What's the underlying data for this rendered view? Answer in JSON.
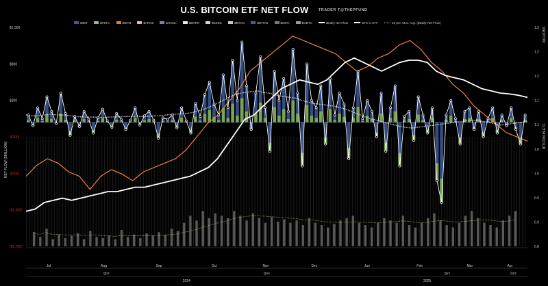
{
  "title": "U.S. BITCOIN ETF NET FLOW",
  "subtitle": "TRADER T@THEPFUND",
  "legend": [
    {
      "label": "$IBIT",
      "type": "bar",
      "color": "#3c5a9a"
    },
    {
      "label": "$FBTC",
      "type": "bar",
      "color": "#8fbf6a"
    },
    {
      "label": "$BITB",
      "type": "bar",
      "color": "#e07b39"
    },
    {
      "label": "$ARKB",
      "type": "bar",
      "color": "#f0b88a"
    },
    {
      "label": "$HODL",
      "type": "bar",
      "color": "#6f86c9"
    },
    {
      "label": "$BRRR",
      "type": "bar",
      "color": "#e8e8e8"
    },
    {
      "label": "$EZBC",
      "type": "bar",
      "color": "#f2c6b8"
    },
    {
      "label": "$BTCO",
      "type": "bar",
      "color": "#c9c9c9"
    },
    {
      "label": "$BTCW",
      "type": "bar",
      "color": "#4a5e8c"
    },
    {
      "label": "$DEFI",
      "type": "bar",
      "color": "#7a7a7a"
    },
    {
      "label": "$GBTC",
      "type": "bar",
      "color": "#9a9a9a"
    },
    {
      "label": "$Daily Net Flow",
      "type": "line-dot",
      "color": "#ffffff"
    },
    {
      "label": "BTC in ETF",
      "type": "line",
      "color": "#ffffff"
    },
    {
      "label": "20 per. Mov. Avg. ($Daily Net Flow)",
      "type": "dotted",
      "color": "#d9d9d9"
    }
  ],
  "axes": {
    "left_title": "NET FLOW ($MILLION)",
    "right_title_top": "MILLIONS",
    "right_title_mid": "BITCOIN IN ETF",
    "left_ticks": [
      {
        "label": "$1,300",
        "value": 1300,
        "neg": false
      },
      {
        "label": "$800",
        "value": 800,
        "neg": false
      },
      {
        "label": "$300",
        "value": 300,
        "neg": false
      },
      {
        "label": "($200)",
        "value": -200,
        "neg": true
      },
      {
        "label": "($700)",
        "value": -700,
        "neg": true
      },
      {
        "label": "($1,200)",
        "value": -1200,
        "neg": true
      },
      {
        "label": "($1,700)",
        "value": -1700,
        "neg": true
      }
    ],
    "right_ticks": [
      "1.3",
      "1.2",
      "1.2",
      "1.1",
      "1.1",
      "1.0",
      "1.0",
      "0.9",
      "0.9",
      "0.8"
    ],
    "months": [
      {
        "label": "Jul",
        "pos": 0.045
      },
      {
        "label": "Aug",
        "pos": 0.155
      },
      {
        "label": "Sep",
        "pos": 0.265
      },
      {
        "label": "Oct",
        "pos": 0.375
      },
      {
        "label": "Nov",
        "pos": 0.478
      },
      {
        "label": "Dec",
        "pos": 0.575
      },
      {
        "label": "Jan",
        "pos": 0.68
      },
      {
        "label": "Feb",
        "pos": 0.785
      },
      {
        "label": "Mar",
        "pos": 0.885
      },
      {
        "label": "Apr",
        "pos": 0.965
      }
    ],
    "quarters": [
      {
        "label": "Qtr3",
        "pos": 0.16
      },
      {
        "label": "Qtr4",
        "pos": 0.48
      },
      {
        "label": "Qtr1",
        "pos": 0.84
      },
      {
        "label": "Qtr2",
        "pos": 0.972
      }
    ],
    "years": [
      {
        "label": "2024",
        "pos": 0.32
      },
      {
        "label": "2025",
        "pos": 0.8
      }
    ]
  },
  "colors": {
    "ibit": "#3c5a9a",
    "fbtc": "#8fbf6a",
    "bitb": "#e07b39",
    "btc_in_etf": "#ffffff",
    "daily_flow": "#ffffff",
    "mov_avg": "#d9d9d9",
    "volume": "#5a5a5a",
    "volume_avg": "#c8c46a"
  },
  "chart_data": {
    "type": "line",
    "title": "U.S. BITCOIN ETF NET FLOW",
    "ylabel": "NET FLOW ($MILLION)",
    "y2label": "BITCOIN IN ETF (MILLIONS)",
    "ylim": [
      -1700,
      1300
    ],
    "y2lim": [
      0.8,
      1.3
    ],
    "series": [
      {
        "name": "$Daily Net Flow",
        "values": [
          100,
          -50,
          200,
          50,
          350,
          150,
          -20,
          400,
          120,
          -180,
          80,
          -60,
          150,
          40,
          -150,
          60,
          180,
          20,
          -70,
          120,
          40,
          -100,
          30,
          200,
          -40,
          90,
          150,
          30,
          -220,
          60,
          40,
          100,
          -80,
          200,
          20,
          -150,
          260,
          80,
          380,
          550,
          250,
          100,
          650,
          200,
          850,
          300,
          1100,
          500,
          -100,
          400,
          900,
          200,
          -400,
          700,
          300,
          600,
          150,
          1000,
          400,
          -600,
          800,
          300,
          200,
          500,
          -300,
          600,
          100,
          400,
          250,
          -500,
          200,
          700,
          50,
          300,
          150,
          -200,
          400,
          -400,
          200,
          500,
          -600,
          80,
          150,
          -250,
          350,
          100,
          -150,
          200,
          -800,
          -1100,
          100,
          300,
          50,
          -300,
          150,
          200,
          -100,
          150,
          -200,
          50,
          200,
          -150,
          100,
          -50,
          200,
          -100,
          -300,
          100
        ],
        "color": "#ffffff"
      },
      {
        "name": "20 per. Mov. Avg. ($Daily Net Flow)",
        "values": [
          100,
          90,
          85,
          95,
          110,
          105,
          100,
          95,
          90,
          80,
          75,
          70,
          72,
          68,
          65,
          70,
          72,
          75,
          78,
          80,
          82,
          80,
          78,
          85,
          88,
          95,
          105,
          110,
          115,
          120,
          130,
          150,
          170,
          200,
          230,
          270,
          310,
          350,
          380,
          400,
          410,
          420,
          430,
          410,
          400,
          380,
          360,
          350,
          340,
          330,
          300,
          280,
          260,
          250,
          240,
          230,
          220,
          200,
          180,
          150,
          120,
          90,
          60,
          40,
          20,
          0,
          -20,
          -40,
          -60,
          -70,
          -80,
          -70,
          -60,
          -50,
          -40,
          -30,
          -20,
          -10,
          0,
          10,
          20,
          30,
          20,
          10,
          0,
          -20,
          -40,
          -30,
          -20,
          -10,
          0,
          10
        ],
        "color": "#d9d9d9"
      },
      {
        "name": "BTC in ETF",
        "axis": "right",
        "values": [
          0.88,
          0.885,
          0.9,
          0.905,
          0.91,
          0.905,
          0.91,
          0.915,
          0.92,
          0.925,
          0.925,
          0.93,
          0.935,
          0.935,
          0.94,
          0.945,
          0.95,
          0.955,
          0.96,
          0.97,
          0.98,
          1.0,
          1.03,
          1.06,
          1.09,
          1.1,
          1.12,
          1.14,
          1.16,
          1.17,
          1.18,
          1.175,
          1.17,
          1.18,
          1.2,
          1.22,
          1.23,
          1.22,
          1.21,
          1.2,
          1.21,
          1.22,
          1.225,
          1.225,
          1.22,
          1.2,
          1.19,
          1.185,
          1.18,
          1.17,
          1.16,
          1.155,
          1.15,
          1.148,
          1.145,
          1.14
        ],
        "color": "#ffffff"
      },
      {
        "name": "BTC price",
        "axis": "right",
        "values": [
          0.96,
          0.985,
          1.0,
          0.99,
          0.97,
          0.96,
          0.93,
          0.96,
          0.975,
          0.965,
          0.95,
          0.97,
          0.98,
          0.99,
          1.0,
          1.02,
          1.05,
          1.08,
          1.1,
          1.13,
          1.16,
          1.2,
          1.22,
          1.24,
          1.26,
          1.28,
          1.27,
          1.26,
          1.25,
          1.24,
          1.22,
          1.2,
          1.21,
          1.23,
          1.24,
          1.26,
          1.27,
          1.25,
          1.22,
          1.2,
          1.17,
          1.15,
          1.12,
          1.1,
          1.08,
          1.06,
          1.05,
          1.04
        ],
        "color": "#e07b39"
      }
    ],
    "volume": [
      120,
      80,
      150,
      60,
      100,
      70,
      90,
      110,
      60,
      130,
      80,
      70,
      90,
      60,
      140,
      80,
      100,
      70,
      110,
      90,
      120,
      100,
      150,
      130,
      200,
      260,
      220,
      300,
      240,
      280,
      260,
      240,
      300,
      260,
      220,
      280,
      240,
      200,
      250,
      210,
      230,
      200,
      220,
      180,
      240,
      200,
      180,
      160,
      190,
      220,
      240,
      260,
      200,
      180,
      160,
      200,
      240,
      220,
      200,
      260,
      180,
      160,
      200,
      240,
      280,
      220,
      180,
      160,
      200,
      260,
      300,
      240,
      200,
      180,
      160,
      220,
      260,
      300
    ]
  }
}
